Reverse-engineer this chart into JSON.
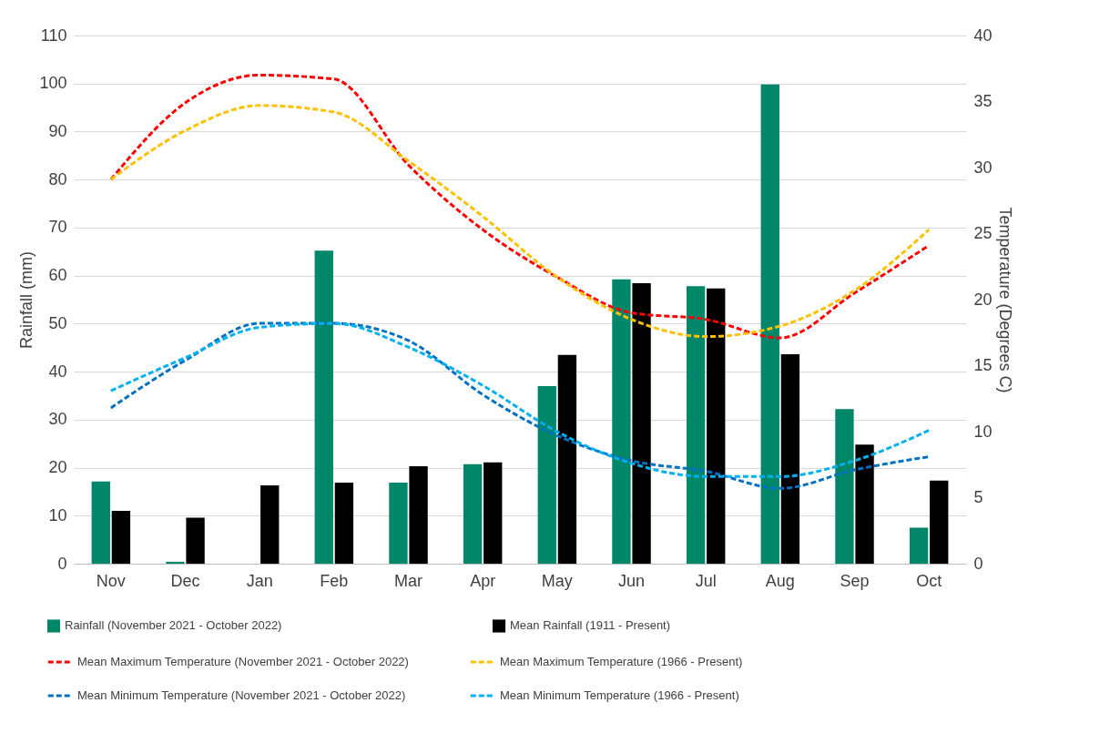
{
  "chart_data": {
    "type": "bar",
    "ylabel": "Rainfall (mm)",
    "y2label": "Temperature (Degrees C)",
    "categories": [
      "Nov",
      "Dec",
      "Jan",
      "Feb",
      "Mar",
      "Apr",
      "May",
      "Jun",
      "Jul",
      "Aug",
      "Sep",
      "Oct"
    ],
    "series": [
      {
        "name": "Rainfall (November 2021 - October 2022)",
        "color": "#00876a",
        "values": [
          17.1,
          0.4,
          0,
          65.2,
          16.9,
          20.7,
          37,
          59.2,
          57.8,
          99.8,
          32.2,
          7.5
        ]
      },
      {
        "name": "Mean Rainfall (1911 - Present)",
        "color": "#000000",
        "values": [
          11,
          9.6,
          16.3,
          16.9,
          20.3,
          21.1,
          43.5,
          58.4,
          57.3,
          43.6,
          24.8,
          17.3
        ]
      },
      {
        "name": "Mean Maximum Temperature (November 2021 - October 2022)",
        "type": "line",
        "axis": "y2",
        "line_style": "dashed",
        "color": "#ff0000",
        "values": [
          29.1,
          34.9,
          37.0,
          36.7,
          30.2,
          25.3,
          21.7,
          19.0,
          18.5,
          17.1,
          20.5,
          24.1
        ]
      },
      {
        "name": "Mean Maximum Temperature (1966 - Present)",
        "type": "line",
        "axis": "y2",
        "line_style": "dashed",
        "color": "#ffc000",
        "values": [
          29.1,
          32.8,
          34.7,
          34.2,
          30.5,
          26.3,
          21.7,
          18.5,
          17.2,
          18.0,
          20.7,
          25.3
        ]
      },
      {
        "name": "Mean Minimum Temperature (November 2021 - October 2022)",
        "type": "line",
        "axis": "y2",
        "line_style": "dashed",
        "color": "#0070c0",
        "values": [
          11.8,
          15.4,
          18.2,
          18.2,
          16.9,
          12.8,
          9.7,
          7.8,
          7.0,
          5.7,
          7.1,
          8.1
        ]
      },
      {
        "name": "Mean Minimum Temperature (1966 - Present)",
        "type": "line",
        "axis": "y2",
        "line_style": "dashed",
        "color": "#00b0f0",
        "values": [
          13.1,
          15.6,
          17.9,
          18.2,
          16.4,
          13.5,
          10.0,
          7.6,
          6.6,
          6.6,
          7.8,
          10.1
        ]
      }
    ],
    "ylim": [
      0,
      110
    ],
    "yticks": [
      0,
      10,
      20,
      30,
      40,
      50,
      60,
      70,
      80,
      90,
      100,
      110
    ],
    "y2lim": [
      0,
      40
    ],
    "y2ticks": [
      0,
      5,
      10,
      15,
      20,
      25,
      30,
      35,
      40
    ],
    "grid": "y",
    "legend": "bottom"
  }
}
